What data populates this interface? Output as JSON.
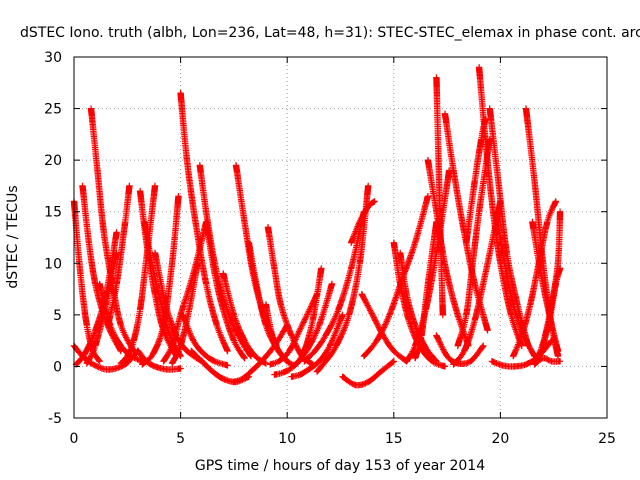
{
  "chart_data": {
    "type": "scatter",
    "title": "dSTEC Iono. truth (albh, Lon=236, Lat=48, h=31): STEC-STEC_elemax in phase cont. arc",
    "xlabel": "GPS time / hours of day 153 of year 2014",
    "ylabel": "dSTEC  / TECUs",
    "xlim": [
      0,
      25
    ],
    "ylim": [
      -5,
      30
    ],
    "xticks": [
      0,
      5,
      10,
      15,
      20,
      25
    ],
    "yticks": [
      -5,
      0,
      5,
      10,
      15,
      20,
      25,
      30
    ],
    "grid": true,
    "legend": "none",
    "marker": "plus",
    "color": "#ff0000",
    "arcs": [
      {
        "x": [
          0.0,
          0.3,
          0.6,
          0.9,
          1.2
        ],
        "y": [
          16,
          9,
          4,
          1.5,
          0.5
        ]
      },
      {
        "x": [
          0.0,
          0.4,
          0.9,
          1.6,
          2.4,
          3.0
        ],
        "y": [
          2,
          1,
          0.2,
          -0.3,
          0.2,
          1.5
        ]
      },
      {
        "x": [
          0.4,
          0.7,
          1.0,
          1.4,
          1.8,
          2.2
        ],
        "y": [
          17.5,
          12,
          8,
          5,
          3,
          1.5
        ]
      },
      {
        "x": [
          0.8,
          1.1,
          1.4,
          1.8,
          2.2,
          2.8
        ],
        "y": [
          25,
          19,
          13,
          8,
          4,
          1.5
        ]
      },
      {
        "x": [
          1.2,
          1.7,
          2.2,
          2.7,
          3.2
        ],
        "y": [
          8,
          4,
          2,
          1,
          0.5
        ]
      },
      {
        "x": [
          0.1,
          0.5,
          1.0,
          1.5,
          2.0
        ],
        "y": [
          0.2,
          1.2,
          3.5,
          7,
          13
        ]
      },
      {
        "x": [
          0.6,
          1.0,
          1.5,
          2.0
        ],
        "y": [
          0.3,
          2,
          6,
          11
        ]
      },
      {
        "x": [
          1.6,
          2.0,
          2.4,
          2.6
        ],
        "y": [
          4,
          8,
          14,
          17.5
        ]
      },
      {
        "x": [
          2.2,
          2.5,
          2.8,
          3.1,
          3.4,
          3.8
        ],
        "y": [
          0.3,
          1,
          2.5,
          5.5,
          10.5,
          17.5
        ]
      },
      {
        "x": [
          3.0,
          3.4,
          3.8,
          4.4,
          5.0
        ],
        "y": [
          1.5,
          0.5,
          0,
          -0.3,
          -0.2
        ]
      },
      {
        "x": [
          3.1,
          3.4,
          3.8,
          4.2,
          4.8
        ],
        "y": [
          17,
          12,
          7,
          3.5,
          1
        ]
      },
      {
        "x": [
          3.3,
          3.7,
          4.1,
          4.5,
          5.0
        ],
        "y": [
          14,
          9.5,
          6,
          3,
          1
        ]
      },
      {
        "x": [
          3.8,
          4.3,
          4.8,
          5.3,
          6.0
        ],
        "y": [
          11,
          6,
          3,
          1.5,
          0.5
        ]
      },
      {
        "x": [
          4.2,
          4.6,
          5.0,
          5.6,
          6.2
        ],
        "y": [
          0.5,
          2,
          5,
          9,
          14
        ]
      },
      {
        "x": [
          3.2,
          3.7,
          4.2,
          4.6,
          4.9
        ],
        "y": [
          0.2,
          1.2,
          4,
          10,
          16.5
        ]
      },
      {
        "x": [
          5.0,
          5.3,
          5.7,
          6.2,
          6.7,
          7.2
        ],
        "y": [
          26.5,
          20,
          14,
          8,
          4,
          1.5
        ]
      },
      {
        "x": [
          5.1,
          5.6,
          6.1,
          6.6,
          7.2
        ],
        "y": [
          5,
          2.5,
          1.2,
          0.5,
          0.1
        ]
      },
      {
        "x": [
          4.6,
          5.0,
          5.4,
          5.8
        ],
        "y": [
          0.3,
          2,
          5.5,
          10
        ]
      },
      {
        "x": [
          5.5,
          6.0,
          6.5,
          7.0,
          7.6,
          8.2
        ],
        "y": [
          1.5,
          0.5,
          -0.5,
          -1.2,
          -1.5,
          -1
        ]
      },
      {
        "x": [
          5.9,
          6.2,
          6.6,
          7.1,
          7.7,
          8.3
        ],
        "y": [
          19.5,
          15,
          10,
          6,
          3,
          1
        ]
      },
      {
        "x": [
          6.2,
          6.6,
          7.0,
          7.5,
          8.0
        ],
        "y": [
          14,
          9,
          5.5,
          2.5,
          0.8
        ]
      },
      {
        "x": [
          7.0,
          7.5,
          8.0,
          8.5,
          9.0
        ],
        "y": [
          9,
          5,
          2.5,
          1,
          0.3
        ]
      },
      {
        "x": [
          7.5,
          7.9,
          8.3,
          8.8,
          9.4,
          10.0
        ],
        "y": [
          -1.5,
          -1.2,
          -0.5,
          0.5,
          2,
          4
        ]
      },
      {
        "x": [
          7.6,
          8.0,
          8.4,
          8.9,
          9.5
        ],
        "y": [
          19.5,
          14,
          9,
          5,
          2
        ]
      },
      {
        "x": [
          8.2,
          8.6,
          9.0,
          9.5,
          10.0
        ],
        "y": [
          12,
          7.5,
          4,
          1.8,
          0.5
        ]
      },
      {
        "x": [
          9.0,
          9.3,
          9.6,
          10.0
        ],
        "y": [
          6,
          3,
          1.5,
          0.5
        ]
      },
      {
        "x": [
          9.1,
          9.4,
          9.7,
          10.2,
          10.7,
          11.2
        ],
        "y": [
          13.5,
          9.5,
          6,
          3,
          1,
          0.2
        ]
      },
      {
        "x": [
          9.2,
          9.6,
          10.1,
          10.7,
          11.4
        ],
        "y": [
          0.2,
          0.5,
          1.5,
          4,
          7
        ]
      },
      {
        "x": [
          9.4,
          9.8,
          10.3,
          10.9,
          11.5,
          12.1
        ],
        "y": [
          -0.8,
          -0.6,
          0,
          1.5,
          4,
          8
        ]
      },
      {
        "x": [
          9.6,
          10.0,
          10.4,
          10.8,
          11.2,
          11.6
        ],
        "y": [
          1.5,
          0.5,
          0.2,
          1.5,
          4.5,
          9.5
        ]
      },
      {
        "x": [
          10.2,
          10.6,
          11.0,
          11.5,
          12.0,
          12.6
        ],
        "y": [
          -1,
          -0.8,
          -0.3,
          0.5,
          2,
          5
        ]
      },
      {
        "x": [
          10.8,
          11.3,
          11.8,
          12.4,
          13.0,
          13.6
        ],
        "y": [
          0.5,
          1.5,
          3,
          5.5,
          9.5,
          15
        ]
      },
      {
        "x": [
          11.4,
          11.8,
          12.3,
          12.9,
          13.4,
          13.8
        ],
        "y": [
          -0.5,
          0.5,
          2,
          5,
          10,
          17.5
        ]
      },
      {
        "x": [
          12.6,
          13.2,
          13.8,
          14.4,
          15.0
        ],
        "y": [
          -1,
          -1.8,
          -1.5,
          -0.5,
          0.5
        ]
      },
      {
        "x": [
          13.5,
          14.0,
          14.5,
          15.0,
          15.6
        ],
        "y": [
          7,
          5,
          3,
          1.5,
          0.5
        ]
      },
      {
        "x": [
          13.6,
          14.2,
          14.8,
          15.4,
          16.0,
          16.6
        ],
        "y": [
          1,
          2.5,
          5,
          8.5,
          12,
          16.5
        ]
      },
      {
        "x": [
          13.0,
          13.4,
          13.8,
          14.1
        ],
        "y": [
          12,
          14,
          15.5,
          16
        ]
      },
      {
        "x": [
          15.0,
          15.3,
          15.7,
          16.2,
          16.8,
          17.4
        ],
        "y": [
          12,
          8,
          4.5,
          2,
          0.5,
          0
        ]
      },
      {
        "x": [
          15.3,
          15.6,
          16.0,
          16.5,
          17.0
        ],
        "y": [
          11,
          7,
          4,
          1.8,
          0.5
        ]
      },
      {
        "x": [
          15.6,
          16.0,
          16.5,
          17.0,
          17.6
        ],
        "y": [
          0.5,
          2,
          5.5,
          11,
          19
        ]
      },
      {
        "x": [
          16.0,
          16.3,
          16.6,
          17.0
        ],
        "y": [
          0.8,
          3,
          8,
          14
        ]
      },
      {
        "x": [
          16.6,
          17.0,
          17.3,
          17.6,
          18.0,
          18.5
        ],
        "y": [
          20,
          15,
          11,
          8,
          5,
          2
        ]
      },
      {
        "x": [
          17.0,
          17.1,
          17.2,
          17.3
        ],
        "y": [
          28,
          20,
          12,
          5
        ]
      },
      {
        "x": [
          17.0,
          17.5,
          18.0,
          18.6,
          19.2
        ],
        "y": [
          3,
          1,
          0.3,
          0.5,
          2
        ]
      },
      {
        "x": [
          17.4,
          17.8,
          18.3,
          18.8,
          19.4
        ],
        "y": [
          24.5,
          19,
          13,
          8,
          3.5
        ]
      },
      {
        "x": [
          17.8,
          18.3,
          18.8,
          19.4,
          20.0
        ],
        "y": [
          0.2,
          1.5,
          4.5,
          10,
          16
        ]
      },
      {
        "x": [
          18.0,
          18.4,
          18.7,
          19.0,
          19.5
        ],
        "y": [
          2,
          5,
          10,
          15,
          22
        ]
      },
      {
        "x": [
          18.4,
          18.8,
          19.1,
          19.3
        ],
        "y": [
          12,
          18,
          22,
          24
        ]
      },
      {
        "x": [
          19.0,
          19.3,
          19.6,
          20.0,
          20.5,
          21.0
        ],
        "y": [
          29,
          22,
          16,
          10,
          5,
          2
        ]
      },
      {
        "x": [
          19.5,
          19.9,
          20.3,
          20.8,
          21.3
        ],
        "y": [
          25,
          18,
          11,
          6,
          2
        ]
      },
      {
        "x": [
          19.8,
          20.2,
          20.6,
          21.1,
          21.6
        ],
        "y": [
          15,
          10,
          6,
          3,
          1
        ]
      },
      {
        "x": [
          19.6,
          20.1,
          20.6,
          21.2,
          21.8,
          22.4
        ],
        "y": [
          0.5,
          0.1,
          0,
          0.2,
          1,
          2.5
        ]
      },
      {
        "x": [
          20.6,
          21.0,
          21.4,
          21.8,
          22.2,
          22.6
        ],
        "y": [
          1,
          3,
          6,
          10,
          14,
          16
        ]
      },
      {
        "x": [
          21.2,
          21.6,
          22.0,
          22.4,
          22.7
        ],
        "y": [
          25,
          18,
          10,
          4,
          1
        ]
      },
      {
        "x": [
          21.5,
          21.9,
          22.3,
          22.7
        ],
        "y": [
          14,
          9,
          5,
          1.5
        ]
      },
      {
        "x": [
          21.8,
          22.1,
          22.4,
          22.7,
          22.8
        ],
        "y": [
          1,
          3,
          6,
          10,
          15
        ]
      },
      {
        "x": [
          22.0,
          22.3,
          22.6,
          22.8
        ],
        "y": [
          2,
          4.5,
          8,
          9.5
        ]
      },
      {
        "x": [
          21.6,
          22.0,
          22.4,
          22.8
        ],
        "y": [
          0.2,
          0.8,
          0.5,
          0.5
        ]
      }
    ]
  }
}
